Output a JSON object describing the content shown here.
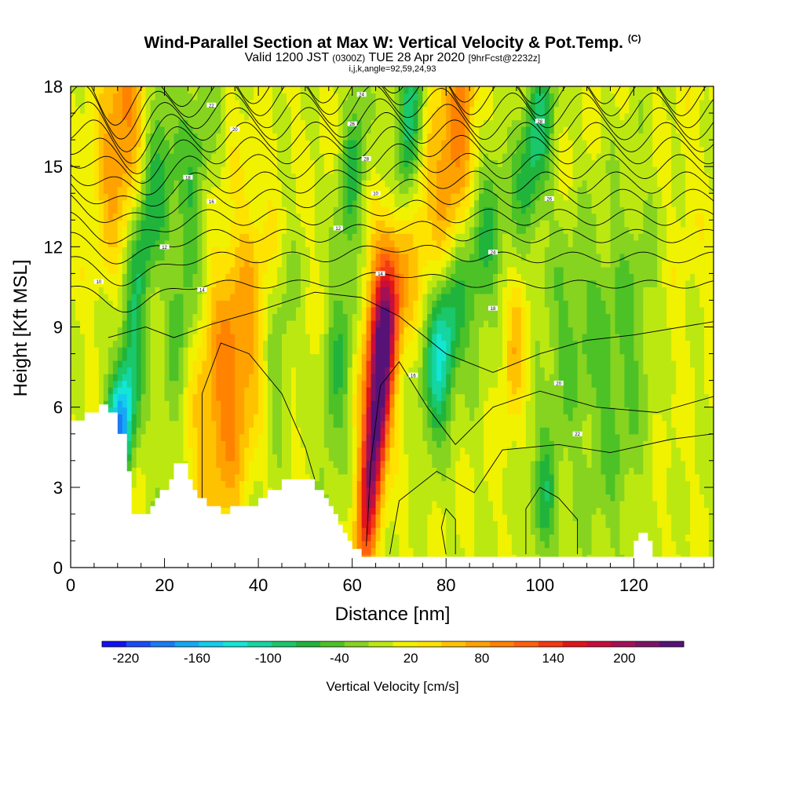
{
  "header": {
    "title": "Wind-Parallel Section at Max W: Vertical Velocity & Pot.Temp.",
    "title_mark": "(C)",
    "valid_prefix": "Valid 1200 JST",
    "valid_zulu": "(0300Z)",
    "valid_date": "TUE 28 Apr 2020",
    "forecast": "[9hrFcst@2232z]",
    "indices": "i,j,k,angle=92,59,24,93"
  },
  "chart_data": {
    "type": "heatmap",
    "xlabel": "Distance [nm]",
    "ylabel": "Height [Kft MSL]",
    "xlim": [
      0,
      137
    ],
    "ylim": [
      0,
      18
    ],
    "x_ticks": [
      "0",
      "20",
      "40",
      "60",
      "80",
      "100",
      "120"
    ],
    "x_tick_values": [
      0,
      20,
      40,
      60,
      80,
      100,
      120
    ],
    "y_ticks": [
      "0",
      "3",
      "6",
      "9",
      "12",
      "15",
      "18"
    ],
    "y_tick_values": [
      0,
      3,
      6,
      9,
      12,
      15,
      18
    ],
    "terrain_profile_kft": [
      [
        0,
        5.5
      ],
      [
        3,
        5.5
      ],
      [
        3,
        5.8
      ],
      [
        6,
        5.8
      ],
      [
        6,
        6.1
      ],
      [
        8,
        6.1
      ],
      [
        8,
        5.8
      ],
      [
        10,
        5.8
      ],
      [
        10,
        5.0
      ],
      [
        12,
        5.0
      ],
      [
        12,
        3.6
      ],
      [
        13,
        3.6
      ],
      [
        13,
        2.0
      ],
      [
        17,
        2.0
      ],
      [
        17,
        2.3
      ],
      [
        18,
        2.3
      ],
      [
        18,
        2.6
      ],
      [
        19,
        2.6
      ],
      [
        19,
        2.9
      ],
      [
        21,
        2.9
      ],
      [
        21,
        3.3
      ],
      [
        22,
        3.3
      ],
      [
        22,
        3.9
      ],
      [
        25,
        3.9
      ],
      [
        25,
        3.3
      ],
      [
        26,
        3.3
      ],
      [
        26,
        2.9
      ],
      [
        27,
        2.9
      ],
      [
        27,
        2.6
      ],
      [
        29,
        2.6
      ],
      [
        29,
        2.3
      ],
      [
        32,
        2.3
      ],
      [
        32,
        2.0
      ],
      [
        34,
        2.0
      ],
      [
        34,
        2.3
      ],
      [
        40,
        2.3
      ],
      [
        40,
        2.6
      ],
      [
        42,
        2.6
      ],
      [
        42,
        2.9
      ],
      [
        45,
        2.9
      ],
      [
        45,
        3.3
      ],
      [
        52,
        3.3
      ],
      [
        52,
        2.9
      ],
      [
        54,
        2.9
      ],
      [
        54,
        2.6
      ],
      [
        55,
        2.6
      ],
      [
        55,
        2.3
      ],
      [
        56,
        2.3
      ],
      [
        56,
        2.0
      ],
      [
        57,
        2.0
      ],
      [
        57,
        1.6
      ],
      [
        58,
        1.6
      ],
      [
        58,
        1.3
      ],
      [
        59,
        1.3
      ],
      [
        59,
        1.0
      ],
      [
        60,
        1.0
      ],
      [
        60,
        0.7
      ],
      [
        62,
        0.7
      ],
      [
        62,
        0.4
      ],
      [
        120,
        0.4
      ],
      [
        120,
        1.0
      ],
      [
        121,
        1.0
      ],
      [
        121,
        1.3
      ],
      [
        123,
        1.3
      ],
      [
        123,
        1.0
      ],
      [
        124,
        1.0
      ],
      [
        124,
        0.4
      ],
      [
        137,
        0.4
      ]
    ],
    "contour_labels": [
      "10",
      "12",
      "14",
      "16",
      "18",
      "20",
      "22",
      "24",
      "26",
      "28"
    ],
    "colorbar": {
      "title": "Vertical Velocity [cm/s]",
      "labels": [
        "-220",
        "-160",
        "-100",
        "-40",
        "20",
        "80",
        "140",
        "200"
      ],
      "label_values": [
        -220,
        -160,
        -100,
        -40,
        20,
        80,
        140,
        200
      ],
      "range": [
        -240,
        250
      ],
      "colors": [
        "#1212f0",
        "#1a4df5",
        "#1a7bf5",
        "#16a9f3",
        "#13ccee",
        "#14e6d6",
        "#15d6a2",
        "#1ac76a",
        "#20b43c",
        "#4cc226",
        "#86d420",
        "#bce812",
        "#f0f200",
        "#ffe300",
        "#ffc200",
        "#ffa200",
        "#ff8300",
        "#ff6010",
        "#f53a12",
        "#e2151a",
        "#c80e3a",
        "#a31055",
        "#7d1267",
        "#561276"
      ]
    }
  }
}
